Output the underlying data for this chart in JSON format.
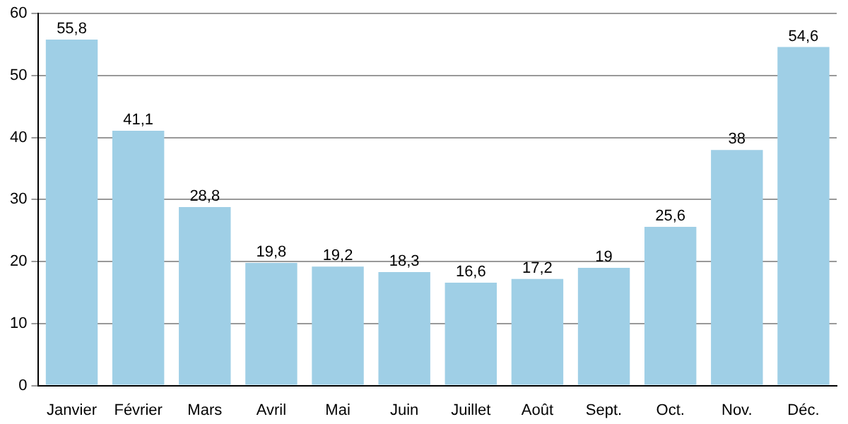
{
  "chart_data": {
    "type": "bar",
    "categories": [
      "Janvier",
      "Février",
      "Mars",
      "Avril",
      "Mai",
      "Juin",
      "Juillet",
      "Août",
      "Sept.",
      "Oct.",
      "Nov.",
      "Déc."
    ],
    "values": [
      55.8,
      41.1,
      28.8,
      19.8,
      19.2,
      18.3,
      16.6,
      17.2,
      19,
      25.6,
      38,
      54.6
    ],
    "value_labels": [
      "55,8",
      "41,1",
      "28,8",
      "19,8",
      "19,2",
      "18,3",
      "16,6",
      "17,2",
      "19",
      "25,6",
      "38",
      "54,6"
    ],
    "color": "#9fcfe6",
    "ylim": [
      0,
      60
    ],
    "yticks": [
      0,
      10,
      20,
      30,
      40,
      50,
      60
    ],
    "grid": "y",
    "legend": false
  }
}
